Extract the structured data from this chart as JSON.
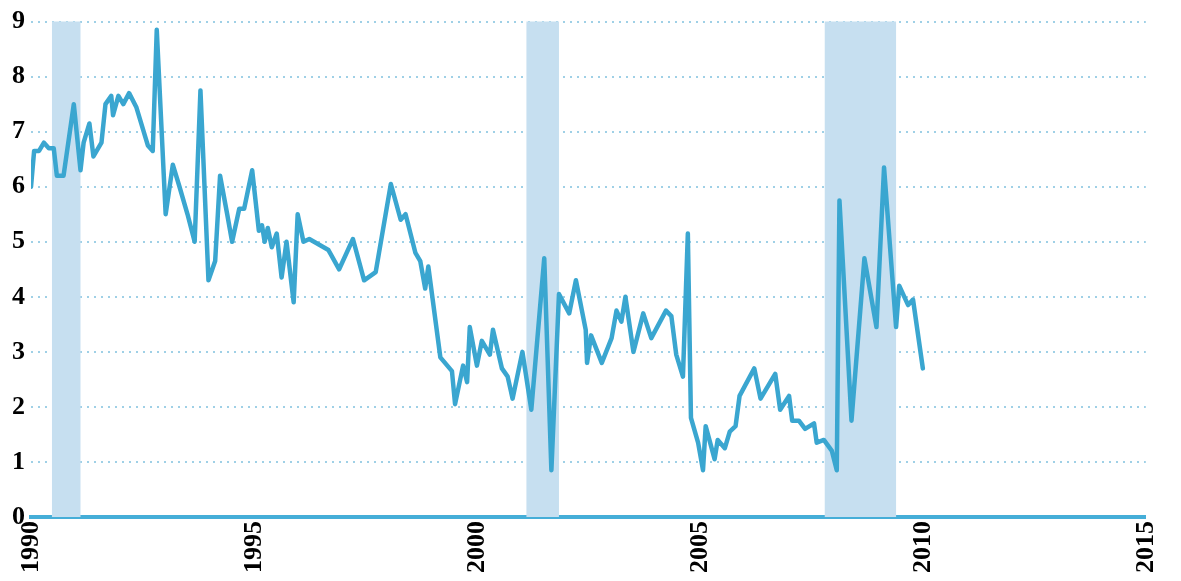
{
  "chart_data": {
    "type": "line",
    "x": [
      1990.0,
      1990.07,
      1990.18,
      1990.29,
      1990.4,
      1990.51,
      1990.58,
      1990.73,
      1990.96,
      1991.11,
      1991.18,
      1991.31,
      1991.4,
      1991.58,
      1991.67,
      1991.8,
      1991.84,
      1991.96,
      1992.07,
      1992.2,
      1992.36,
      1992.62,
      1992.73,
      1992.82,
      1993.02,
      1993.18,
      1993.33,
      1993.51,
      1993.67,
      1993.8,
      1993.98,
      1994.13,
      1994.24,
      1994.4,
      1994.51,
      1994.67,
      1994.78,
      1994.96,
      1995.11,
      1995.18,
      1995.24,
      1995.31,
      1995.4,
      1995.51,
      1995.62,
      1995.73,
      1995.89,
      1995.98,
      1996.11,
      1996.24,
      1996.67,
      1996.91,
      1997.22,
      1997.47,
      1997.73,
      1998.07,
      1998.29,
      1998.4,
      1998.62,
      1998.73,
      1998.84,
      1998.91,
      1999.18,
      1999.44,
      1999.51,
      1999.69,
      1999.78,
      1999.84,
      2000.0,
      2000.11,
      2000.29,
      2000.36,
      2000.56,
      2000.69,
      2000.8,
      2001.02,
      2001.22,
      2001.51,
      2001.67,
      2001.84,
      2002.07,
      2002.22,
      2002.44,
      2002.47,
      2002.56,
      2002.8,
      2003.02,
      2003.13,
      2003.24,
      2003.33,
      2003.51,
      2003.73,
      2003.91,
      2004.24,
      2004.36,
      2004.47,
      2004.62,
      2004.73,
      2004.8,
      2004.96,
      2005.07,
      2005.13,
      2005.33,
      2005.4,
      2005.56,
      2005.67,
      2005.8,
      2005.89,
      2006.22,
      2006.36,
      2006.69,
      2006.8,
      2007.0,
      2007.07,
      2007.22,
      2007.36,
      2007.56,
      2007.62,
      2007.78,
      2007.96,
      2008.07,
      2008.13,
      2008.4,
      2008.69,
      2008.96,
      2009.13,
      2009.4,
      2009.47,
      2009.67,
      2009.78,
      2010.0
    ],
    "series": [
      {
        "color": "#3aa6d0",
        "values": [
          6.0,
          6.65,
          6.65,
          6.8,
          6.7,
          6.7,
          6.2,
          6.2,
          7.5,
          6.3,
          6.8,
          7.15,
          6.55,
          6.8,
          7.5,
          7.65,
          7.3,
          7.65,
          7.5,
          7.7,
          7.45,
          6.75,
          6.65,
          8.85,
          5.5,
          6.4,
          6.0,
          5.5,
          5.0,
          7.75,
          4.3,
          4.65,
          6.2,
          5.5,
          5.0,
          5.6,
          5.6,
          6.3,
          5.2,
          5.3,
          5.0,
          5.25,
          4.9,
          5.15,
          4.35,
          5.0,
          3.9,
          5.5,
          5.0,
          5.05,
          4.85,
          4.5,
          5.05,
          4.3,
          4.45,
          6.05,
          5.4,
          5.5,
          4.8,
          4.65,
          4.15,
          4.55,
          2.9,
          2.65,
          2.05,
          2.75,
          2.45,
          3.45,
          2.75,
          3.2,
          2.95,
          3.4,
          2.7,
          2.55,
          2.15,
          3.0,
          1.95,
          4.7,
          0.85,
          4.05,
          3.7,
          4.3,
          3.4,
          2.8,
          3.3,
          2.8,
          3.25,
          3.75,
          3.55,
          4.0,
          3.0,
          3.7,
          3.25,
          3.75,
          3.65,
          2.95,
          2.55,
          5.15,
          1.8,
          1.35,
          0.85,
          1.65,
          1.05,
          1.4,
          1.25,
          1.55,
          1.65,
          2.2,
          2.7,
          2.15,
          2.6,
          1.95,
          2.2,
          1.75,
          1.75,
          1.6,
          1.7,
          1.35,
          1.4,
          1.2,
          0.85,
          5.75,
          1.75,
          4.7,
          3.45,
          6.35,
          3.45,
          4.2,
          3.85,
          3.95,
          2.7
        ]
      }
    ],
    "xlim": [
      1990,
      2015
    ],
    "xticks": [
      1990,
      1995,
      2000,
      2005,
      2010,
      2015
    ],
    "ylim": [
      0,
      9
    ],
    "yticks": [
      0,
      1,
      2,
      3,
      4,
      5,
      6,
      7,
      8,
      9
    ],
    "grid": "y",
    "marker": "none",
    "line_style": "solid",
    "bands": [
      {
        "axis": "x",
        "from": 1990.47,
        "to": 1991.11,
        "color": "#c6dff0"
      },
      {
        "axis": "x",
        "from": 2001.11,
        "to": 2001.84,
        "color": "#c6dff0"
      },
      {
        "axis": "x",
        "from": 2007.8,
        "to": 2009.4,
        "color": "#c6dff0"
      }
    ]
  }
}
